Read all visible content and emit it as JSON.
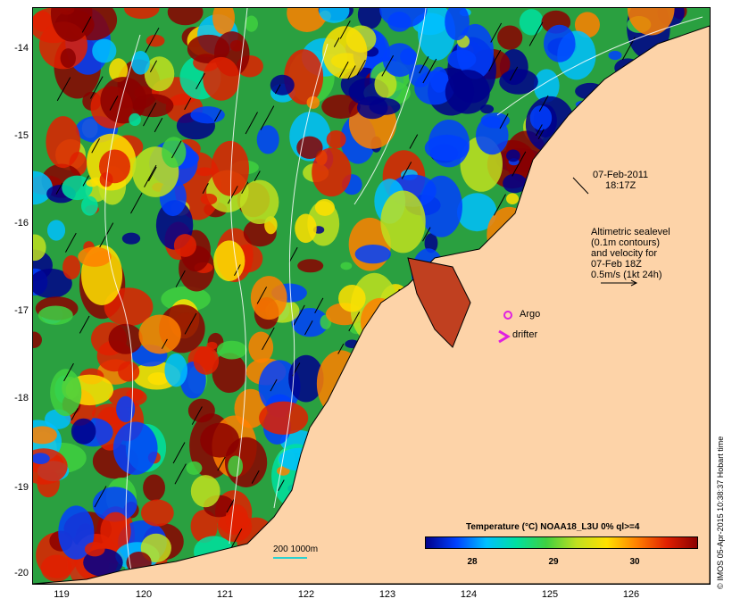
{
  "map": {
    "lat_ticks": [
      "-14",
      "-15",
      "-16",
      "-17",
      "-18",
      "-19",
      "-20"
    ],
    "lon_ticks": [
      "119",
      "120",
      "121",
      "122",
      "123",
      "124",
      "125",
      "126"
    ],
    "land_color": "#fdd3a8"
  },
  "annotations": {
    "date_line1": "07-Feb-2011",
    "date_line2": "18:17Z",
    "altimetry_lines": [
      "Altimetric sealevel",
      "(0.1m contours)",
      "and velocity for",
      "07-Feb 18Z",
      "0.5m/s (1kt 24h)"
    ],
    "argo_label": "Argo",
    "drifter_label": "drifter",
    "argo_color": "#e020e0",
    "scale_label": "200  1000m"
  },
  "colorbar": {
    "title": "Temperature (°C) NOAA18_L3U 0% ql>=4",
    "ticks": [
      "28",
      "29",
      "30"
    ],
    "colors": [
      "#00008b",
      "#0040ff",
      "#00c0ff",
      "#00e0a0",
      "#40d040",
      "#c0e020",
      "#ffe000",
      "#ff8000",
      "#e02000",
      "#8b0000"
    ]
  },
  "credit": "© IMOS 05-Apr-2015 10:38:37 Hobart time"
}
